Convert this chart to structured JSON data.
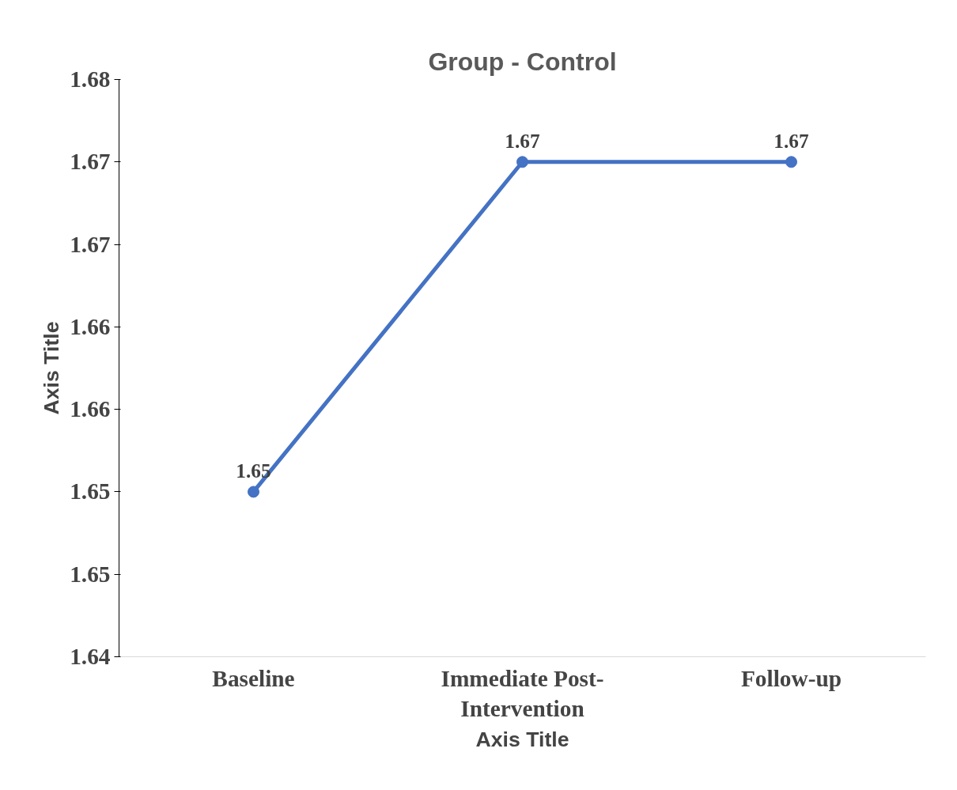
{
  "chart_data": {
    "type": "line",
    "title": "Group - Control",
    "xlabel": "Axis Title",
    "ylabel": "Axis Title",
    "categories": [
      "Baseline",
      "Immediate Post-Intervention",
      "Follow-up"
    ],
    "series": [
      {
        "color": "#4472c4",
        "values": [
          1.65,
          1.67,
          1.67
        ]
      }
    ],
    "ylim": [
      1.64,
      1.675
    ],
    "yticks": [
      {
        "value": 1.64,
        "label": "1.64"
      },
      {
        "value": 1.645,
        "label": "1.65"
      },
      {
        "value": 1.65,
        "label": "1.65"
      },
      {
        "value": 1.655,
        "label": "1.66"
      },
      {
        "value": 1.66,
        "label": "1.66"
      },
      {
        "value": 1.665,
        "label": "1.67"
      },
      {
        "value": 1.67,
        "label": "1.67"
      },
      {
        "value": 1.675,
        "label": "1.68"
      }
    ],
    "data_labels": true,
    "marker": "circle",
    "grid": false
  }
}
